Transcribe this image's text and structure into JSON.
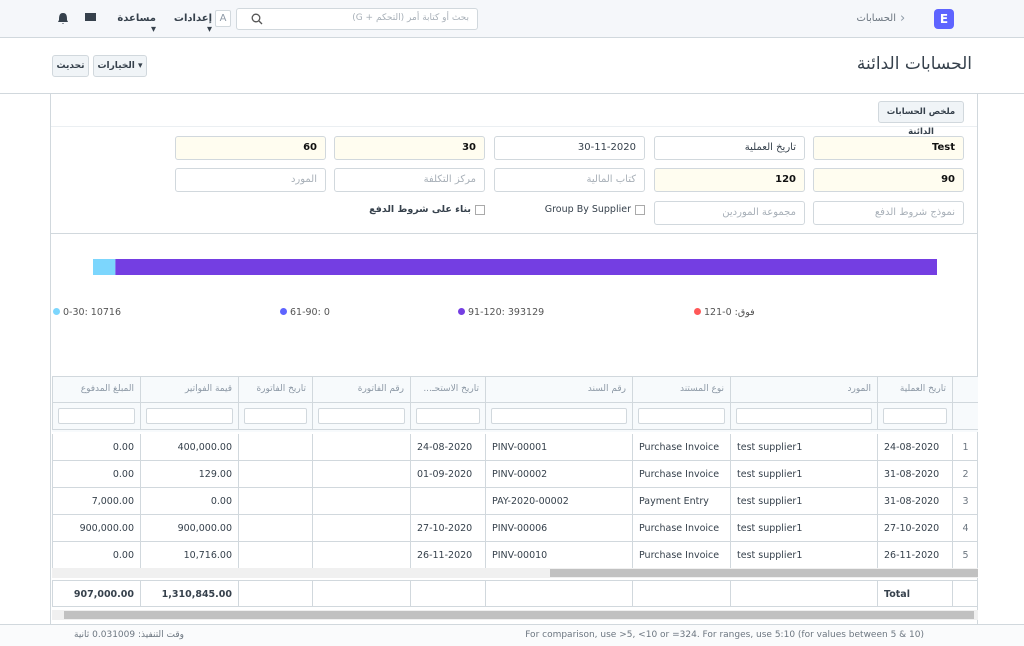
{
  "navbar": {
    "breadcrumb": "الحسابات",
    "logo": "E",
    "search_placeholder": "بحث أو كتابة أمر (التحكم + G)",
    "settings_letter": "A",
    "settings": "إعدادات",
    "help": "مساعدة"
  },
  "page": {
    "title": "الحسابات الدائنة",
    "refresh": "تحديث",
    "options": "الخيارات"
  },
  "filters": {
    "section": "ملخص الحسابات الدائنة",
    "row1": [
      {
        "text": "Test",
        "kind": "value",
        "hl": true
      },
      {
        "text": "تاريخ العملية",
        "kind": "value",
        "hl": false
      },
      {
        "text": "30-11-2020",
        "kind": "value",
        "hl": false
      },
      {
        "text": "30",
        "kind": "value",
        "hl": true
      },
      {
        "text": "60",
        "kind": "value",
        "hl": true
      }
    ],
    "row2": [
      {
        "text": "90",
        "kind": "value",
        "hl": true
      },
      {
        "text": "120",
        "kind": "value",
        "hl": true
      },
      {
        "text": "كتاب المالية",
        "kind": "placeholder",
        "hl": false
      },
      {
        "text": "مركز التكلفة",
        "kind": "placeholder",
        "hl": false
      },
      {
        "text": "المورد",
        "kind": "placeholder",
        "hl": false
      }
    ],
    "row3": [
      {
        "text": "نموذج شروط الدفع",
        "kind": "placeholder",
        "hl": false
      },
      {
        "text": "مجموعة الموردين",
        "kind": "placeholder",
        "hl": false
      },
      {
        "text": "Group By Supplier",
        "kind": "check",
        "hl": false
      },
      {
        "text": "بناء على شروط الدفع",
        "kind": "check",
        "hl": false
      }
    ]
  },
  "chart": {
    "legend": [
      {
        "label": "0-30",
        "value": 10716,
        "color": "#7cd6fd"
      },
      {
        "label": "61-90",
        "value": 0,
        "color": "#5e64ff"
      },
      {
        "label": "91-120",
        "value": 393129,
        "color": "#743ee2"
      },
      {
        "label": "121-فوق",
        "value": 0,
        "color": "#ff5858"
      }
    ]
  },
  "table": {
    "columns": [
      "تاريخ العملية",
      "المورد",
      "نوع المستند",
      "رقم السند",
      "تاريخ الاستحـ...",
      "رقم الفاتورة",
      "تاريخ الفاتورة",
      "قيمة الفواتير",
      "المبلغ المدفوع"
    ],
    "rows": [
      [
        "1",
        "24-08-2020",
        "test supplier1",
        "Purchase Invoice",
        "PINV-00001",
        "24-08-2020",
        "",
        "",
        "400,000.00",
        "0.00"
      ],
      [
        "2",
        "31-08-2020",
        "test supplier1",
        "Purchase Invoice",
        "PINV-00002",
        "01-09-2020",
        "",
        "",
        "129.00",
        "0.00"
      ],
      [
        "3",
        "31-08-2020",
        "test supplier1",
        "Payment Entry",
        "PAY-2020-00002",
        "",
        "",
        "",
        "0.00",
        "7,000.00"
      ],
      [
        "4",
        "27-10-2020",
        "test supplier1",
        "Purchase Invoice",
        "PINV-00006",
        "27-10-2020",
        "",
        "",
        "900,000.00",
        "900,000.00"
      ],
      [
        "5",
        "26-11-2020",
        "test supplier1",
        "Purchase Invoice",
        "PINV-00010",
        "26-11-2020",
        "",
        "",
        "10,716.00",
        "0.00"
      ]
    ],
    "totals": {
      "label": "Total",
      "invoiced": "1,310,845.00",
      "paid": "907,000.00"
    }
  },
  "footer": {
    "time": "وقت التنفيذ: 0.031009 ثانية",
    "help": "For comparison, use >5, <10 or =324. For ranges, use 5:10 (for values between 5 & 10)"
  }
}
